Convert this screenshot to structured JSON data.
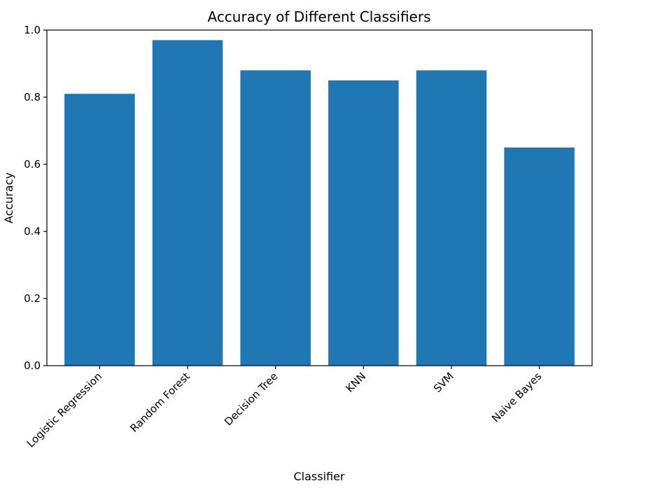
{
  "chart_data": {
    "type": "bar",
    "title": "Accuracy of Different Classifiers",
    "xlabel": "Classifier",
    "ylabel": "Accuracy",
    "categories": [
      "Logistic Regression",
      "Random Forest",
      "Decision Tree",
      "KNN",
      "SVM",
      "Naive Bayes"
    ],
    "values": [
      0.81,
      0.97,
      0.88,
      0.85,
      0.88,
      0.65
    ],
    "ylim": [
      0,
      1.0
    ],
    "yticks": [
      "0.0",
      "0.2",
      "0.4",
      "0.6",
      "0.8",
      "1.0"
    ],
    "x_tick_rotation_deg": 45,
    "grid": false,
    "legend": "none",
    "bar_color": "#1f77b4"
  }
}
